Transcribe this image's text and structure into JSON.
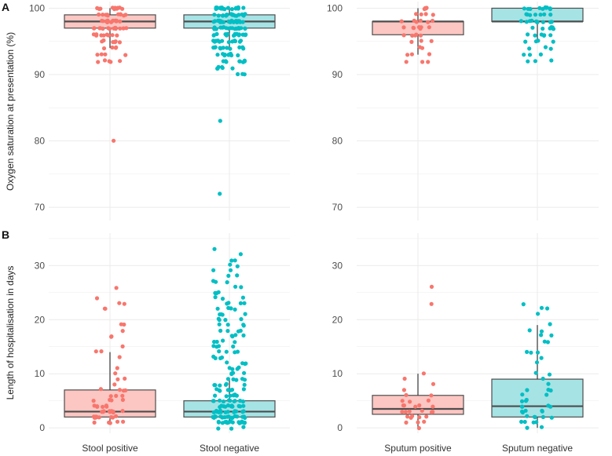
{
  "chart_data": [
    {
      "type": "boxplot",
      "panel_label": "A",
      "ylabel": "Oxygen saturation at presentation (%)",
      "ylim": [
        68,
        101
      ],
      "yticks": [
        70,
        80,
        90,
        100
      ],
      "grid": true,
      "categories": [
        "Stool positive",
        "Stool negative"
      ],
      "groups": [
        {
          "name": "Stool positive",
          "color": "#F8766D",
          "fill": "#FCC6C2",
          "q1": 97,
          "median": 98,
          "q3": 99,
          "whisker_low": 94,
          "whisker_high": 100,
          "points": [
            100,
            100,
            100,
            100,
            100,
            100,
            100,
            100,
            100,
            100,
            100,
            100,
            99,
            99,
            99,
            99,
            99,
            99,
            99,
            99,
            99,
            99,
            98,
            98,
            98,
            98,
            98,
            98,
            98,
            98,
            98,
            98,
            98,
            98,
            98,
            98,
            97,
            97,
            97,
            97,
            97,
            97,
            97,
            97,
            97,
            97,
            97,
            97,
            97,
            97,
            96,
            96,
            96,
            96,
            96,
            96,
            96,
            96,
            96,
            95,
            95,
            95,
            95,
            95,
            95,
            95,
            94,
            94,
            94,
            94,
            93,
            93,
            93,
            93,
            92,
            92,
            92,
            92,
            92,
            80
          ]
        },
        {
          "name": "Stool negative",
          "color": "#00BFC4",
          "fill": "#A6E3E5",
          "q1": 97,
          "median": 98,
          "q3": 99,
          "whisker_low": 94,
          "whisker_high": 100,
          "points": [
            100,
            100,
            100,
            100,
            100,
            100,
            100,
            100,
            100,
            100,
            100,
            100,
            100,
            100,
            100,
            100,
            100,
            100,
            100,
            100,
            99,
            99,
            99,
            99,
            99,
            99,
            99,
            99,
            99,
            99,
            99,
            99,
            99,
            99,
            99,
            99,
            99,
            99,
            98,
            98,
            98,
            98,
            98,
            98,
            98,
            98,
            98,
            98,
            98,
            98,
            98,
            98,
            98,
            98,
            98,
            98,
            98,
            98,
            98,
            98,
            98,
            98,
            97,
            97,
            97,
            97,
            97,
            97,
            97,
            97,
            97,
            97,
            97,
            97,
            97,
            97,
            97,
            97,
            97,
            97,
            97,
            97,
            96,
            96,
            96,
            96,
            96,
            96,
            96,
            96,
            96,
            96,
            96,
            96,
            96,
            96,
            96,
            96,
            95,
            95,
            95,
            95,
            95,
            95,
            95,
            95,
            95,
            95,
            95,
            95,
            95,
            95,
            94,
            94,
            94,
            94,
            94,
            94,
            94,
            94,
            94,
            94,
            94,
            93,
            93,
            93,
            93,
            93,
            93,
            93,
            93,
            93,
            93,
            92,
            92,
            92,
            92,
            92,
            92,
            92,
            92,
            91,
            91,
            91,
            91,
            91,
            91,
            90,
            90,
            90,
            83,
            72
          ]
        }
      ]
    },
    {
      "type": "boxplot",
      "panel_label": "",
      "ylabel": "",
      "ylim": [
        68,
        101
      ],
      "yticks": [
        70,
        80,
        90,
        100
      ],
      "grid": true,
      "categories": [
        "Sputum positive",
        "Sputum negative"
      ],
      "groups": [
        {
          "name": "Sputum positive",
          "color": "#F8766D",
          "fill": "#FCC6C2",
          "q1": 96,
          "median": 98,
          "q3": 98,
          "whisker_low": 93,
          "whisker_high": 100,
          "points": [
            100,
            100,
            100,
            100,
            99,
            99,
            99,
            99,
            98,
            98,
            98,
            98,
            98,
            98,
            97,
            97,
            97,
            97,
            97,
            97,
            97,
            96,
            96,
            96,
            96,
            96,
            95,
            95,
            95,
            94,
            94,
            93,
            93,
            93,
            92,
            92,
            92
          ]
        },
        {
          "name": "Sputum negative",
          "color": "#00BFC4",
          "fill": "#A6E3E5",
          "q1": 98,
          "median": 98,
          "q3": 100,
          "whisker_low": 95,
          "whisker_high": 100,
          "points": [
            100,
            100,
            100,
            100,
            100,
            100,
            100,
            100,
            100,
            100,
            99,
            99,
            99,
            99,
            99,
            99,
            99,
            98,
            98,
            98,
            98,
            98,
            98,
            98,
            98,
            98,
            98,
            97,
            97,
            97,
            97,
            97,
            97,
            97,
            96,
            96,
            96,
            96,
            96,
            96,
            95,
            95,
            95,
            95,
            94,
            94,
            94,
            93,
            93,
            93,
            92,
            92,
            92
          ]
        }
      ]
    },
    {
      "type": "boxplot",
      "panel_label": "B",
      "ylabel": "Length of hospitalisation in days",
      "ylim": [
        -1,
        36
      ],
      "yticks": [
        0,
        10,
        20,
        30
      ],
      "grid": true,
      "categories": [
        "Stool positive",
        "Stool negative"
      ],
      "groups": [
        {
          "name": "Stool positive",
          "color": "#F8766D",
          "fill": "#FCC6C2",
          "q1": 2,
          "median": 3,
          "q3": 7,
          "whisker_low": 1,
          "whisker_high": 14,
          "points": [
            26,
            24,
            23,
            23,
            22,
            22,
            19,
            19,
            18,
            17,
            17,
            15,
            14,
            14,
            13,
            11,
            10,
            9,
            9,
            8,
            7,
            7,
            7,
            7,
            6,
            6,
            6,
            5,
            5,
            5,
            5,
            4,
            4,
            4,
            4,
            4,
            4,
            3,
            3,
            3,
            3,
            3,
            3,
            3,
            3,
            3,
            2,
            2,
            2,
            2,
            2,
            2,
            2,
            2,
            2,
            1,
            1,
            1,
            1,
            1
          ]
        },
        {
          "name": "Stool negative",
          "color": "#00BFC4",
          "fill": "#A6E3E5",
          "q1": 2,
          "median": 3,
          "q3": 5,
          "whisker_low": 1,
          "whisker_high": 9,
          "points": [
            33,
            32,
            31,
            31,
            30,
            30,
            29,
            29,
            28,
            28,
            27,
            27,
            27,
            26,
            26,
            25,
            25,
            25,
            24,
            24,
            24,
            23,
            23,
            23,
            23,
            22,
            22,
            22,
            22,
            21,
            21,
            21,
            21,
            20,
            20,
            20,
            20,
            19,
            19,
            19,
            19,
            18,
            18,
            18,
            18,
            17,
            17,
            17,
            17,
            16,
            16,
            16,
            16,
            15,
            15,
            15,
            15,
            14,
            14,
            14,
            14,
            13,
            13,
            13,
            13,
            12,
            12,
            12,
            12,
            11,
            11,
            11,
            11,
            10,
            10,
            10,
            10,
            9,
            9,
            9,
            9,
            9,
            8,
            8,
            8,
            8,
            8,
            8,
            7,
            7,
            7,
            7,
            7,
            7,
            7,
            6,
            6,
            6,
            6,
            6,
            6,
            6,
            6,
            5,
            5,
            5,
            5,
            5,
            5,
            5,
            5,
            5,
            5,
            4,
            4,
            4,
            4,
            4,
            4,
            4,
            4,
            4,
            4,
            4,
            4,
            3,
            3,
            3,
            3,
            3,
            3,
            3,
            3,
            3,
            3,
            3,
            3,
            3,
            3,
            3,
            3,
            2,
            2,
            2,
            2,
            2,
            2,
            2,
            2,
            2,
            2,
            2,
            2,
            2,
            2,
            2,
            2,
            2,
            2,
            1,
            1,
            1,
            1,
            1,
            1,
            1,
            1,
            1,
            1,
            1,
            1,
            1,
            1,
            1,
            1,
            1,
            1,
            0,
            0,
            0
          ]
        }
      ]
    },
    {
      "type": "boxplot",
      "panel_label": "",
      "ylabel": "",
      "ylim": [
        -1,
        36
      ],
      "yticks": [
        0,
        10,
        20,
        30
      ],
      "grid": true,
      "categories": [
        "Sputum positive",
        "Sputum negative"
      ],
      "groups": [
        {
          "name": "Sputum positive",
          "color": "#F8766D",
          "fill": "#FCC6C2",
          "q1": 2.5,
          "median": 3.5,
          "q3": 6,
          "whisker_low": 0,
          "whisker_high": 10,
          "points": [
            26,
            23,
            10,
            9,
            8,
            7,
            6,
            6,
            5,
            5,
            5,
            4,
            4,
            4,
            4,
            4,
            3,
            3,
            3,
            3,
            3,
            3,
            2,
            2,
            2,
            2,
            2,
            1,
            1,
            1,
            0
          ]
        },
        {
          "name": "Sputum negative",
          "color": "#00BFC4",
          "fill": "#A6E3E5",
          "q1": 2,
          "median": 4,
          "q3": 9,
          "whisker_low": 0,
          "whisker_high": 19,
          "points": [
            23,
            22,
            22,
            21,
            19,
            18,
            18,
            17,
            17,
            16,
            16,
            14,
            14,
            14,
            13,
            12,
            10,
            10,
            9,
            8,
            7,
            7,
            7,
            6,
            6,
            5,
            5,
            5,
            4,
            4,
            4,
            4,
            3,
            3,
            3,
            3,
            3,
            2,
            2,
            2,
            2,
            2,
            1,
            1,
            1,
            1,
            0,
            0
          ]
        }
      ]
    }
  ]
}
